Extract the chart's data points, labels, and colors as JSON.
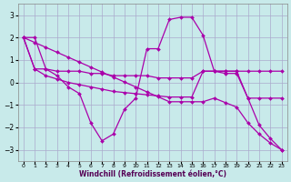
{
  "xlabel": "Windchill (Refroidissement éolien,°C)",
  "background_color": "#c8eaea",
  "grid_color": "#aaaacc",
  "line_color": "#aa00aa",
  "xlim": [
    -0.5,
    23.5
  ],
  "ylim": [
    -3.5,
    3.5
  ],
  "yticks": [
    -3,
    -2,
    -1,
    0,
    1,
    2,
    3
  ],
  "xticks": [
    0,
    1,
    2,
    3,
    4,
    5,
    6,
    7,
    8,
    9,
    10,
    11,
    12,
    13,
    14,
    15,
    16,
    17,
    18,
    19,
    20,
    21,
    22,
    23
  ],
  "series": [
    {
      "x": [
        0,
        1,
        2,
        3,
        4,
        5,
        6,
        7,
        8,
        9,
        10,
        11,
        12,
        13,
        14,
        15,
        16,
        17,
        18,
        19,
        20,
        21,
        22,
        23
      ],
      "y": [
        2.0,
        2.0,
        0.6,
        0.3,
        -0.2,
        -0.5,
        -1.8,
        -2.6,
        -2.3,
        -1.2,
        -0.7,
        1.5,
        1.5,
        2.8,
        2.9,
        2.9,
        2.1,
        0.5,
        0.5,
        0.5,
        -0.7,
        -1.9,
        -2.5,
        -3.0
      ]
    },
    {
      "x": [
        0,
        1,
        2,
        3,
        4,
        5,
        6,
        7,
        8,
        9,
        10,
        11,
        12,
        13,
        14,
        15,
        16,
        17,
        18,
        19,
        20,
        21,
        22,
        23
      ],
      "y": [
        2.0,
        0.6,
        0.6,
        0.5,
        0.5,
        0.5,
        0.4,
        0.4,
        0.3,
        0.3,
        0.3,
        0.3,
        0.2,
        0.2,
        0.2,
        0.2,
        0.5,
        0.5,
        0.5,
        0.5,
        0.5,
        0.5,
        0.5,
        0.5
      ]
    },
    {
      "x": [
        0,
        1,
        2,
        3,
        4,
        5,
        6,
        7,
        8,
        9,
        10,
        11,
        12,
        13,
        14,
        15,
        16,
        17,
        18,
        19,
        20,
        21,
        22,
        23
      ],
      "y": [
        2.0,
        0.6,
        0.3,
        0.15,
        0.0,
        -0.1,
        -0.2,
        -0.3,
        -0.4,
        -0.45,
        -0.5,
        -0.55,
        -0.6,
        -0.65,
        -0.65,
        -0.65,
        0.5,
        0.5,
        0.4,
        0.4,
        -0.7,
        -0.7,
        -0.7,
        -0.7
      ]
    },
    {
      "x": [
        0,
        1,
        2,
        3,
        4,
        5,
        6,
        7,
        8,
        9,
        10,
        11,
        12,
        13,
        14,
        15,
        16,
        17,
        18,
        19,
        20,
        21,
        22,
        23
      ],
      "y": [
        2.0,
        1.78,
        1.56,
        1.34,
        1.12,
        0.9,
        0.68,
        0.46,
        0.24,
        0.02,
        -0.2,
        -0.42,
        -0.64,
        -0.86,
        -0.86,
        -0.86,
        -0.86,
        -0.7,
        -0.9,
        -1.1,
        -1.8,
        -2.3,
        -2.7,
        -3.0
      ]
    }
  ]
}
